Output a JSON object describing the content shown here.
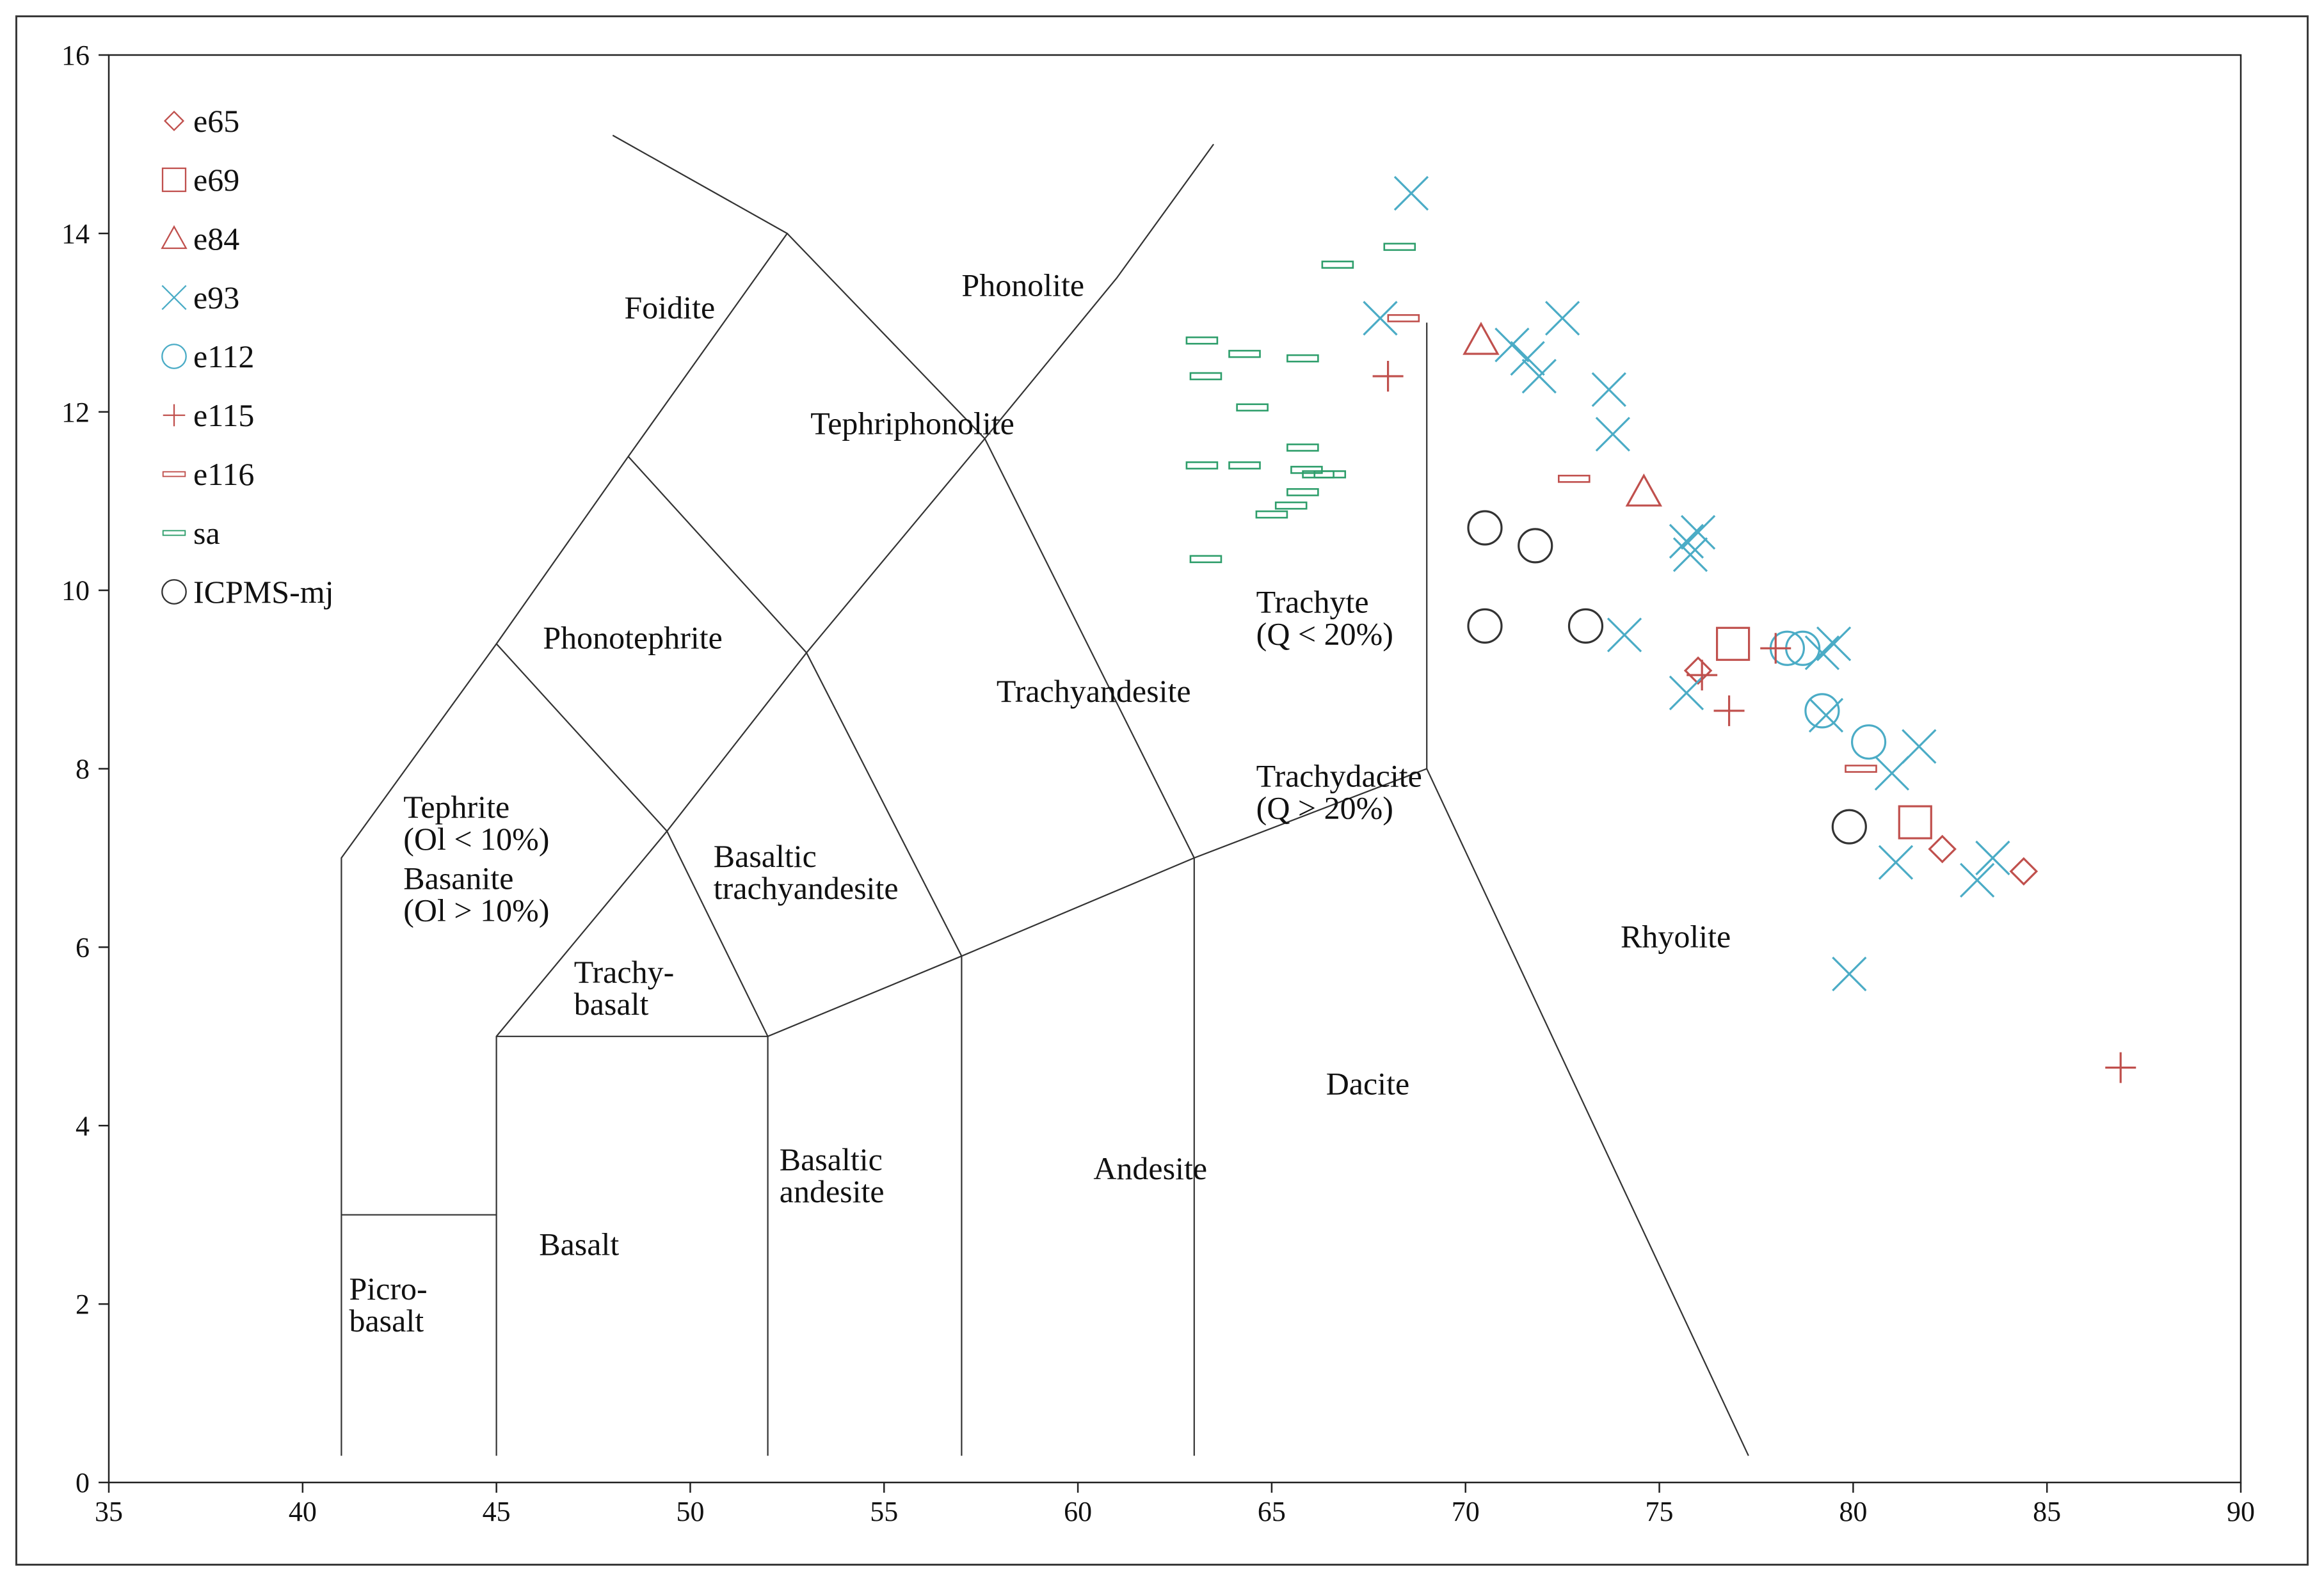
{
  "chart_data": {
    "type": "scatter",
    "title": "",
    "xlabel": "",
    "ylabel": "",
    "xlim": [
      35,
      90
    ],
    "ylim": [
      0,
      16
    ],
    "x_ticks": [
      "35",
      "40",
      "45",
      "50",
      "55",
      "60",
      "65",
      "70",
      "75",
      "80",
      "85",
      "90"
    ],
    "y_ticks": [
      "0",
      "2",
      "4",
      "6",
      "8",
      "10",
      "12",
      "14",
      "16"
    ],
    "grid": false,
    "legend_position": "top-left",
    "tas_boundaries": [
      [
        [
          41,
          0.3
        ],
        [
          41,
          7
        ],
        [
          45,
          9.4
        ],
        [
          48.4,
          11.5
        ],
        [
          52.5,
          14
        ],
        [
          48.0,
          15.1
        ]
      ],
      [
        [
          41,
          3
        ],
        [
          45,
          3
        ]
      ],
      [
        [
          45,
          0.3
        ],
        [
          45,
          5
        ],
        [
          49.4,
          7.3
        ],
        [
          53,
          9.3
        ],
        [
          57.6,
          11.7
        ],
        [
          61,
          13.5
        ],
        [
          63.5,
          15.0
        ]
      ],
      [
        [
          45,
          5
        ],
        [
          52,
          5
        ],
        [
          57,
          5.9
        ],
        [
          63,
          7
        ],
        [
          69,
          8
        ],
        [
          77.3,
          0.3
        ]
      ],
      [
        [
          52,
          0.3
        ],
        [
          52,
          5
        ]
      ],
      [
        [
          57,
          0.3
        ],
        [
          57,
          5.9
        ]
      ],
      [
        [
          63,
          0.3
        ],
        [
          63,
          7
        ]
      ],
      [
        [
          69,
          8
        ],
        [
          69,
          13
        ]
      ],
      [
        [
          52,
          5
        ],
        [
          49.4,
          7.3
        ]
      ],
      [
        [
          57,
          5.9
        ],
        [
          53,
          9.3
        ],
        [
          48.4,
          11.5
        ]
      ],
      [
        [
          63,
          7
        ],
        [
          57.6,
          11.7
        ],
        [
          52.5,
          14
        ]
      ],
      [
        [
          45,
          9.4
        ],
        [
          49.4,
          7.3
        ]
      ]
    ],
    "field_labels": [
      {
        "lines": [
          "Foidite"
        ],
        "at": [
          48.3,
          13.05
        ]
      },
      {
        "lines": [
          "Phonolite"
        ],
        "at": [
          57.0,
          13.3
        ]
      },
      {
        "lines": [
          "Tephriphonolite"
        ],
        "at": [
          53.1,
          11.75
        ]
      },
      {
        "lines": [
          "Phonotephrite"
        ],
        "at": [
          46.2,
          9.35
        ]
      },
      {
        "lines": [
          "Trachyandesite"
        ],
        "at": [
          57.9,
          8.75
        ]
      },
      {
        "lines": [
          "Trachyte",
          "(Q < 20%)"
        ],
        "at": [
          64.6,
          9.75
        ]
      },
      {
        "lines": [
          "Trachydacite",
          "(Q > 20%)"
        ],
        "at": [
          64.6,
          7.8
        ]
      },
      {
        "lines": [
          "Tephrite",
          "(Ol < 10%)"
        ],
        "at": [
          42.6,
          7.45
        ]
      },
      {
        "lines": [
          "Basanite",
          "(Ol > 10%)"
        ],
        "at": [
          42.6,
          6.65
        ]
      },
      {
        "lines": [
          "Basaltic",
          "trachyandesite"
        ],
        "at": [
          50.6,
          6.9
        ]
      },
      {
        "lines": [
          "Trachy-",
          "basalt"
        ],
        "at": [
          47.0,
          5.6
        ]
      },
      {
        "lines": [
          "Rhyolite"
        ],
        "at": [
          74.0,
          6.0
        ]
      },
      {
        "lines": [
          "Dacite"
        ],
        "at": [
          66.4,
          4.35
        ]
      },
      {
        "lines": [
          "Basaltic",
          "andesite"
        ],
        "at": [
          52.3,
          3.5
        ]
      },
      {
        "lines": [
          "Andesite"
        ],
        "at": [
          60.4,
          3.4
        ]
      },
      {
        "lines": [
          "Basalt"
        ],
        "at": [
          46.1,
          2.55
        ]
      },
      {
        "lines": [
          "Picro-",
          "basalt"
        ],
        "at": [
          41.2,
          2.05
        ]
      }
    ],
    "series": [
      {
        "name": "e65",
        "marker": "diamond",
        "color": "#c0504d",
        "points": [
          [
            76.0,
            9.1
          ],
          [
            82.3,
            7.1
          ],
          [
            84.4,
            6.85
          ]
        ]
      },
      {
        "name": "e69",
        "marker": "square",
        "color": "#c0504d",
        "points": [
          [
            76.9,
            9.4
          ],
          [
            81.6,
            7.4
          ]
        ]
      },
      {
        "name": "e84",
        "marker": "triangle",
        "color": "#c0504d",
        "points": [
          [
            70.4,
            12.8
          ],
          [
            74.6,
            11.1
          ]
        ]
      },
      {
        "name": "e93",
        "marker": "x",
        "color": "#4bacc6",
        "points": [
          [
            68.6,
            14.45
          ],
          [
            67.8,
            13.05
          ],
          [
            71.2,
            12.75
          ],
          [
            71.6,
            12.6
          ],
          [
            71.9,
            12.4
          ],
          [
            72.5,
            13.05
          ],
          [
            73.7,
            12.25
          ],
          [
            73.8,
            11.75
          ],
          [
            75.7,
            10.55
          ],
          [
            76.0,
            10.65
          ],
          [
            75.8,
            10.4
          ],
          [
            74.1,
            9.5
          ],
          [
            75.7,
            8.85
          ],
          [
            79.5,
            9.4
          ],
          [
            79.2,
            9.3
          ],
          [
            79.3,
            8.6
          ],
          [
            81.0,
            7.95
          ],
          [
            81.7,
            8.25
          ],
          [
            81.1,
            6.95
          ],
          [
            83.2,
            6.75
          ],
          [
            83.6,
            7.0
          ],
          [
            79.9,
            5.7
          ]
        ]
      },
      {
        "name": "e112",
        "marker": "circle",
        "color": "#4bacc6",
        "points": [
          [
            78.3,
            9.35
          ],
          [
            78.7,
            9.35
          ],
          [
            79.2,
            8.65
          ],
          [
            80.4,
            8.3
          ]
        ]
      },
      {
        "name": "e115",
        "marker": "plus",
        "color": "#c0504d",
        "points": [
          [
            68.0,
            12.4
          ],
          [
            76.1,
            9.05
          ],
          [
            76.8,
            8.65
          ],
          [
            78.0,
            9.35
          ],
          [
            86.9,
            4.65
          ]
        ]
      },
      {
        "name": "e116",
        "marker": "dash",
        "color": "#c0504d",
        "points": [
          [
            68.4,
            13.05
          ],
          [
            72.8,
            11.25
          ],
          [
            80.2,
            8.0
          ]
        ]
      },
      {
        "name": "sa",
        "marker": "dash",
        "color": "#2e9e6b",
        "points": [
          [
            63.2,
            12.8
          ],
          [
            63.3,
            12.4
          ],
          [
            64.3,
            12.65
          ],
          [
            65.8,
            12.6
          ],
          [
            66.7,
            13.65
          ],
          [
            68.3,
            13.85
          ],
          [
            64.5,
            12.05
          ],
          [
            63.2,
            11.4
          ],
          [
            64.3,
            11.4
          ],
          [
            65.8,
            11.6
          ],
          [
            65.9,
            11.35
          ],
          [
            66.2,
            11.3
          ],
          [
            66.5,
            11.3
          ],
          [
            65.8,
            11.1
          ],
          [
            65.5,
            10.95
          ],
          [
            65.0,
            10.85
          ],
          [
            63.3,
            10.35
          ]
        ]
      },
      {
        "name": "ICPMS-mj",
        "marker": "circle",
        "color": "#333333",
        "points": [
          [
            70.5,
            10.7
          ],
          [
            71.8,
            10.5
          ],
          [
            70.5,
            9.6
          ],
          [
            73.1,
            9.6
          ],
          [
            79.9,
            7.35
          ]
        ]
      }
    ]
  }
}
